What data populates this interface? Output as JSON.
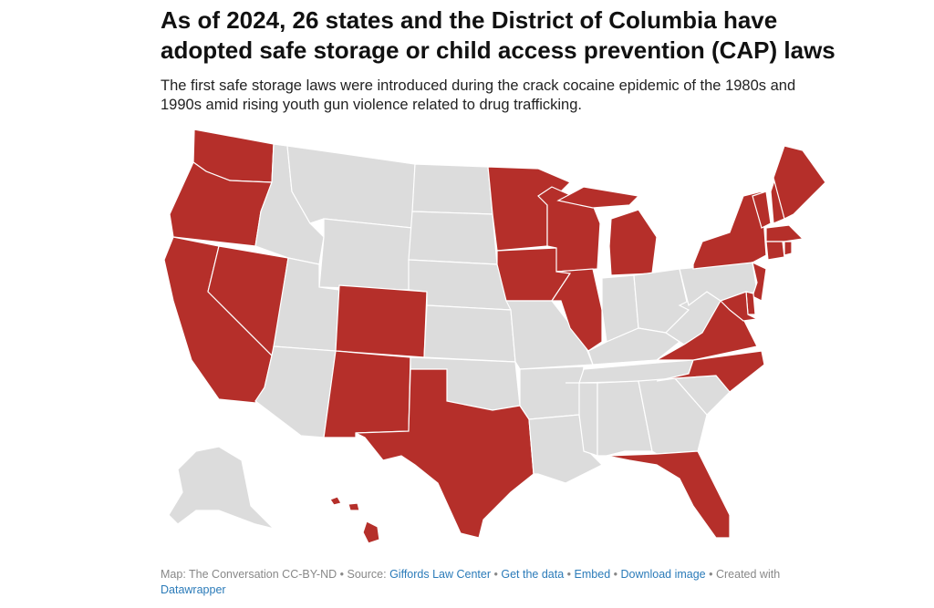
{
  "header": {
    "title": "As of 2024, 26 states and the District of Columbia have adopted safe storage or child access prevention (CAP)  laws",
    "subtitle": "The first safe storage laws were introduced during the crack cocaine epidemic of the 1980s and 1990s amid rising youth gun violence related to drug trafficking."
  },
  "footer": {
    "credit": "Map: The Conversation CC-BY-ND",
    "separator": "•",
    "source_label": "Source:",
    "source": "Giffords Law Center",
    "get_data": "Get the data",
    "embed": "Embed",
    "download": "Download image",
    "created_with": "Created with",
    "tool": "Datawrapper"
  }
}
